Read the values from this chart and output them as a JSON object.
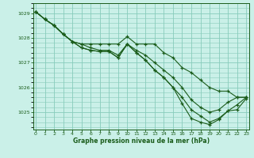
{
  "title": "Graphe pression niveau de la mer (hPa)",
  "bg_color": "#caf0e8",
  "grid_color": "#88ccbb",
  "line_color": "#1a5c1a",
  "marker_color": "#1a5c1a",
  "ylim": [
    1024.3,
    1029.4
  ],
  "xlim": [
    -0.3,
    23.3
  ],
  "yticks": [
    1025,
    1026,
    1027,
    1028,
    1029
  ],
  "xticks": [
    0,
    1,
    2,
    3,
    4,
    5,
    6,
    7,
    8,
    9,
    10,
    11,
    12,
    13,
    14,
    15,
    16,
    17,
    18,
    19,
    20,
    21,
    22,
    23
  ],
  "series": [
    [
      1029.05,
      1028.75,
      1028.5,
      1028.15,
      1027.85,
      1027.75,
      1027.75,
      1027.75,
      1027.75,
      1027.75,
      1028.05,
      1027.75,
      1027.75,
      1027.75,
      1027.4,
      1027.2,
      1026.8,
      1026.6,
      1026.3,
      1026.0,
      1025.85,
      1025.85,
      1025.6,
      1025.6
    ],
    [
      1029.05,
      1028.75,
      1028.5,
      1028.15,
      1027.85,
      1027.75,
      1027.6,
      1027.5,
      1027.5,
      1027.3,
      1027.75,
      1027.5,
      1027.3,
      1027.0,
      1026.7,
      1026.4,
      1026.0,
      1025.5,
      1025.2,
      1025.0,
      1025.1,
      1025.4,
      1025.6,
      1025.6
    ],
    [
      1029.05,
      1028.75,
      1028.5,
      1028.15,
      1027.85,
      1027.6,
      1027.5,
      1027.45,
      1027.45,
      1027.2,
      1027.75,
      1027.4,
      1027.1,
      1026.7,
      1026.4,
      1026.0,
      1025.6,
      1025.1,
      1024.85,
      1024.6,
      1024.75,
      1025.05,
      1025.3,
      1025.6
    ],
    [
      1029.05,
      1028.75,
      1028.5,
      1028.15,
      1027.85,
      1027.6,
      1027.5,
      1027.45,
      1027.45,
      1027.2,
      1027.75,
      1027.4,
      1027.1,
      1026.7,
      1026.4,
      1026.0,
      1025.35,
      1024.75,
      1024.6,
      1024.5,
      1024.7,
      1025.05,
      1025.1,
      1025.55
    ]
  ]
}
